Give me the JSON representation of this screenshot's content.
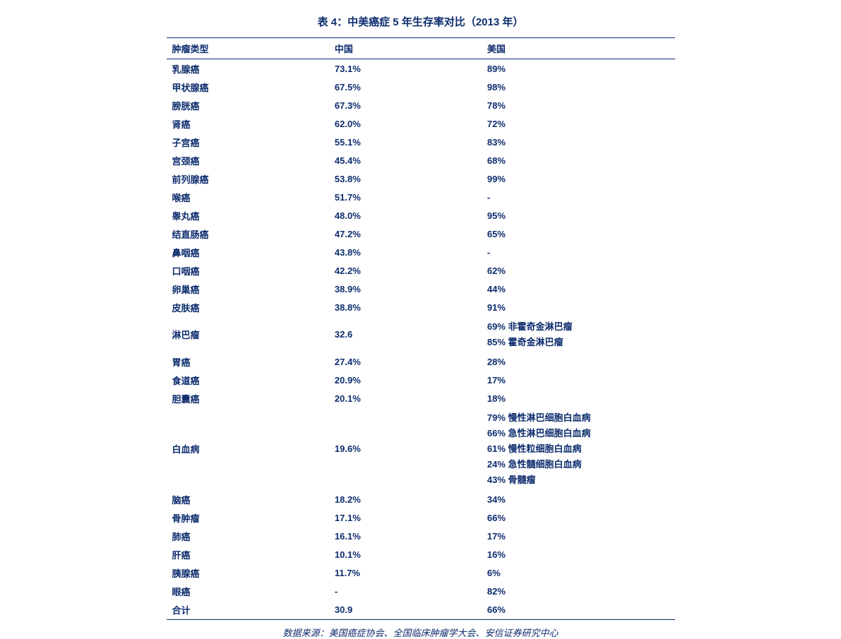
{
  "title": "表 4：中美癌症 5 年生存率对比（2013 年）",
  "caption": "数据来源：美国癌症协会、全国临床肿瘤学大会、安信证券研究中心",
  "colors": {
    "text": "#0d2c6e",
    "border": "#0d2c6e",
    "background": "#ffffff"
  },
  "columns": [
    "肿瘤类型",
    "中国",
    "美国"
  ],
  "rows": [
    {
      "type": "乳腺癌",
      "china": "73.1%",
      "us": "89%"
    },
    {
      "type": "甲状腺癌",
      "china": "67.5%",
      "us": "98%"
    },
    {
      "type": "膀胱癌",
      "china": "67.3%",
      "us": "78%"
    },
    {
      "type": "肾癌",
      "china": "62.0%",
      "us": "72%"
    },
    {
      "type": "子宫癌",
      "china": "55.1%",
      "us": "83%"
    },
    {
      "type": "宫颈癌",
      "china": "45.4%",
      "us": "68%"
    },
    {
      "type": "前列腺癌",
      "china": "53.8%",
      "us": "99%"
    },
    {
      "type": "喉癌",
      "china": "51.7%",
      "us": "-"
    },
    {
      "type": "睾丸癌",
      "china": "48.0%",
      "us": "95%"
    },
    {
      "type": "结直肠癌",
      "china": "47.2%",
      "us": "65%"
    },
    {
      "type": "鼻咽癌",
      "china": "43.8%",
      "us": "-"
    },
    {
      "type": "口咽癌",
      "china": "42.2%",
      "us": "62%"
    },
    {
      "type": "卵巢癌",
      "china": "38.9%",
      "us": "44%"
    },
    {
      "type": "皮肤癌",
      "china": "38.8%",
      "us": "91%"
    },
    {
      "type": "淋巴瘤",
      "china": "32.6",
      "us": "69%  非霍奇金淋巴瘤\n85%  霍奇金淋巴瘤",
      "multiline": true
    },
    {
      "type": "胃癌",
      "china": "27.4%",
      "us": "28%"
    },
    {
      "type": "食道癌",
      "china": "20.9%",
      "us": "17%"
    },
    {
      "type": "胆囊癌",
      "china": "20.1%",
      "us": "18%"
    },
    {
      "type": "白血病",
      "china": "19.6%",
      "us": "79%  慢性淋巴细胞白血病\n66%  急性淋巴细胞白血病\n61%  慢性粒细胞白血病\n24%  急性髓细胞白血病\n43%  骨髓瘤",
      "multiline": true
    },
    {
      "type": "脑癌",
      "china": "18.2%",
      "us": "34%"
    },
    {
      "type": "骨肿瘤",
      "china": "17.1%",
      "us": "66%"
    },
    {
      "type": "肺癌",
      "china": "16.1%",
      "us": "17%"
    },
    {
      "type": "肝癌",
      "china": "10.1%",
      "us": "16%"
    },
    {
      "type": "胰腺癌",
      "china": "11.7%",
      "us": "6%"
    },
    {
      "type": "眼癌",
      "china": "-",
      "us": "82%"
    },
    {
      "type": "合计",
      "china": "30.9",
      "us": "66%"
    }
  ]
}
